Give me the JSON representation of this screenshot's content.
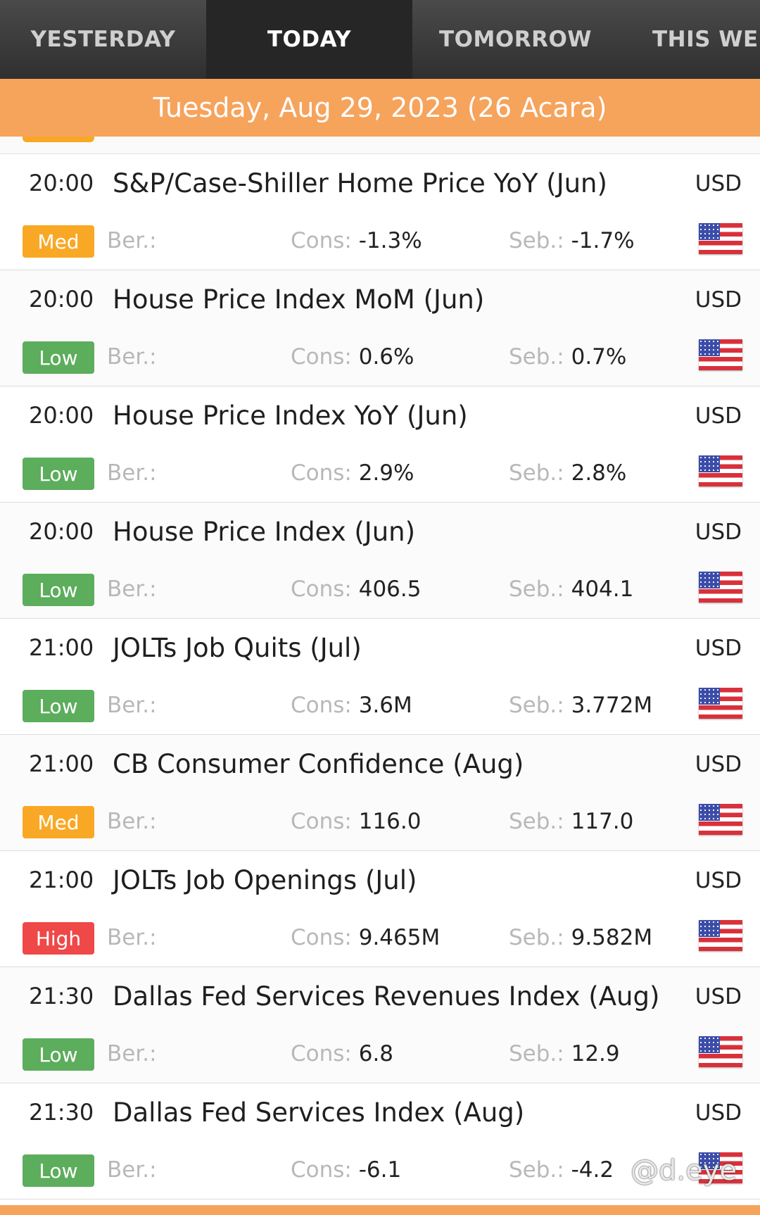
{
  "tabs": [
    {
      "label": "YESTERDAY"
    },
    {
      "label": "TODAY"
    },
    {
      "label": "TOMORROW"
    },
    {
      "label": "THIS WEE"
    }
  ],
  "date_header": "Tuesday, Aug 29, 2023 (26 Acara)",
  "labels": {
    "actual": "Ber.:",
    "consensus": "Cons:",
    "previous": "Seb.:"
  },
  "importance_colors": {
    "Low": "#5cad5c",
    "Med": "#f9a826",
    "High": "#ef4848"
  },
  "events": [
    {
      "time": "20:00",
      "title": "S&P/Case-Shiller Home Price YoY (Jun)",
      "currency": "USD",
      "importance": "Med",
      "actual": "",
      "consensus": "-1.3%",
      "previous": "-1.7%"
    },
    {
      "time": "20:00",
      "title": "House Price Index MoM (Jun)",
      "currency": "USD",
      "importance": "Low",
      "actual": "",
      "consensus": "0.6%",
      "previous": "0.7%"
    },
    {
      "time": "20:00",
      "title": "House Price Index YoY (Jun)",
      "currency": "USD",
      "importance": "Low",
      "actual": "",
      "consensus": "2.9%",
      "previous": "2.8%"
    },
    {
      "time": "20:00",
      "title": "House Price Index (Jun)",
      "currency": "USD",
      "importance": "Low",
      "actual": "",
      "consensus": "406.5",
      "previous": "404.1"
    },
    {
      "time": "21:00",
      "title": "JOLTs Job Quits (Jul)",
      "currency": "USD",
      "importance": "Low",
      "actual": "",
      "consensus": "3.6M",
      "previous": "3.772M"
    },
    {
      "time": "21:00",
      "title": "CB Consumer Confidence (Aug)",
      "currency": "USD",
      "importance": "Med",
      "actual": "",
      "consensus": "116.0",
      "previous": "117.0"
    },
    {
      "time": "21:00",
      "title": "JOLTs Job Openings (Jul)",
      "currency": "USD",
      "importance": "High",
      "actual": "",
      "consensus": "9.465M",
      "previous": "9.582M"
    },
    {
      "time": "21:30",
      "title": "Dallas Fed Services Revenues Index (Aug)",
      "currency": "USD",
      "importance": "Low",
      "actual": "",
      "consensus": "6.8",
      "previous": "12.9"
    },
    {
      "time": "21:30",
      "title": "Dallas Fed Services Index (Aug)",
      "currency": "USD",
      "importance": "Low",
      "actual": "",
      "consensus": "-6.1",
      "previous": "-4.2"
    }
  ],
  "watermark": "@d.eye"
}
